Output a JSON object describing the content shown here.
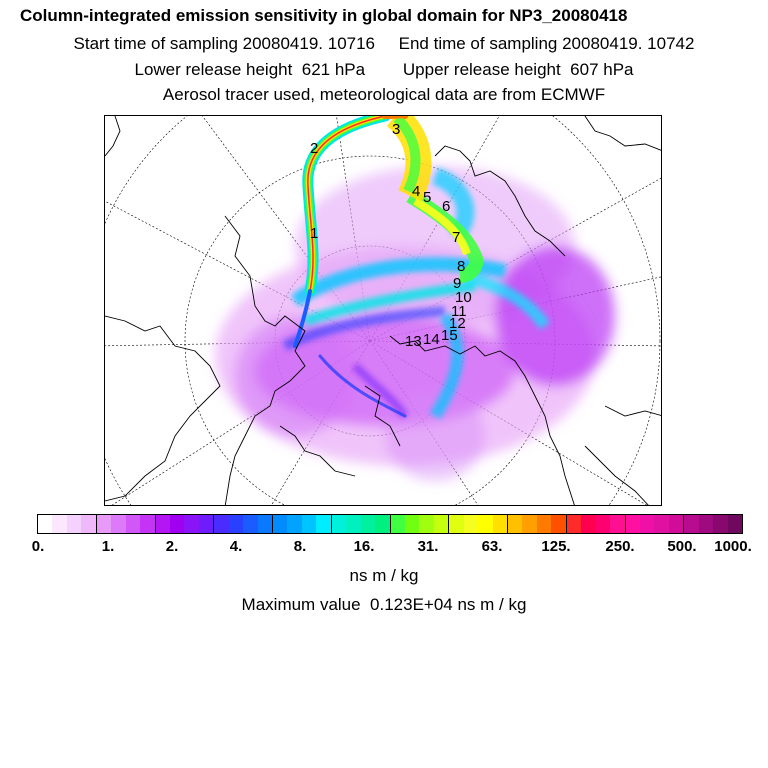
{
  "title": {
    "line1": "Column-integrated emission sensitivity in global domain for NP3_20080418",
    "line2": "Start time of sampling 20080419. 10716     End time of sampling 20080419. 10742",
    "line3": "Lower release height  621 hPa        Upper release height  607 hPa",
    "line4": "Aerosol tracer used, meteorological data are from ECMWF"
  },
  "map": {
    "projection": "polar stereographic",
    "day_labels": [
      "1",
      "2",
      "3",
      "4",
      "5",
      "6",
      "7",
      "8",
      "9",
      "10",
      "11",
      "12",
      "13",
      "14",
      "15"
    ]
  },
  "colorbar": {
    "colors": [
      "#ffffff",
      "#fbe8fe",
      "#f5d1fd",
      "#efb8fb",
      "#e89af9",
      "#dd7af7",
      "#d158f6",
      "#c533f5",
      "#b316f3",
      "#a000f0",
      "#8a14f7",
      "#6f1cfb",
      "#4a2cff",
      "#2a40ff",
      "#1a5cff",
      "#0a78ff",
      "#008cff",
      "#00a4ff",
      "#00c4ff",
      "#00ecff",
      "#00f0dc",
      "#00f0c0",
      "#00f0a0",
      "#00f080",
      "#40ff40",
      "#70ff10",
      "#a0ff10",
      "#c4ff10",
      "#e0ff10",
      "#f4ff20",
      "#ffff00",
      "#ffe000",
      "#ffc000",
      "#ffa000",
      "#ff7a00",
      "#ff5000",
      "#ff2a2a",
      "#ff0050",
      "#ff0070",
      "#ff1090",
      "#ff10a0",
      "#f010a8",
      "#e010a0",
      "#d00c98",
      "#b80c90",
      "#a00a80",
      "#880870",
      "#700860"
    ],
    "tick_labels": [
      "0.",
      "1.",
      "2.",
      "4.",
      "8.",
      "16.",
      "31.",
      "63.",
      "125.",
      "250.",
      "500.",
      "1000."
    ],
    "unit": "ns m / kg"
  },
  "max_value_text": "Maximum value  0.123E+04 ns m / kg"
}
